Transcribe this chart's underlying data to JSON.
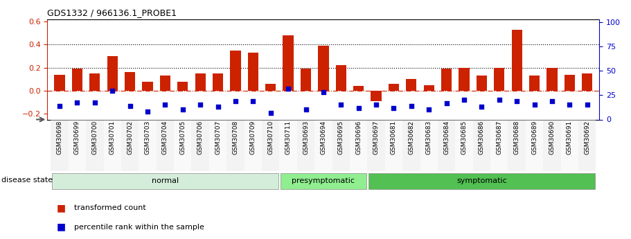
{
  "title": "GDS1332 / 966136.1_PROBE1",
  "samples": [
    "GSM30698",
    "GSM30699",
    "GSM30700",
    "GSM30701",
    "GSM30702",
    "GSM30703",
    "GSM30704",
    "GSM30705",
    "GSM30706",
    "GSM30707",
    "GSM30708",
    "GSM30709",
    "GSM30710",
    "GSM30711",
    "GSM30693",
    "GSM30694",
    "GSM30695",
    "GSM30696",
    "GSM30697",
    "GSM30681",
    "GSM30682",
    "GSM30683",
    "GSM30684",
    "GSM30685",
    "GSM30686",
    "GSM30687",
    "GSM30688",
    "GSM30689",
    "GSM30690",
    "GSM30691",
    "GSM30692"
  ],
  "red_values": [
    0.14,
    0.19,
    0.15,
    0.3,
    0.16,
    0.08,
    0.13,
    0.08,
    0.15,
    0.15,
    0.35,
    0.33,
    0.06,
    0.48,
    0.19,
    0.39,
    0.22,
    0.04,
    -0.09,
    0.06,
    0.1,
    0.05,
    0.19,
    0.2,
    0.13,
    0.2,
    0.53,
    0.13,
    0.2,
    0.14,
    0.15
  ],
  "blue_values": [
    -0.13,
    -0.1,
    -0.1,
    0.0,
    -0.13,
    -0.18,
    -0.12,
    -0.16,
    -0.12,
    -0.14,
    -0.09,
    -0.09,
    -0.19,
    0.02,
    -0.16,
    -0.01,
    -0.12,
    -0.15,
    -0.12,
    -0.15,
    -0.13,
    -0.16,
    -0.11,
    -0.08,
    -0.14,
    -0.08,
    -0.09,
    -0.12,
    -0.09,
    -0.12,
    -0.12
  ],
  "groups": [
    {
      "label": "normal",
      "start": 0,
      "end": 13,
      "color": "#d4edda"
    },
    {
      "label": "presymptomatic",
      "start": 13,
      "end": 18,
      "color": "#90ee90"
    },
    {
      "label": "symptomatic",
      "start": 18,
      "end": 31,
      "color": "#52c052"
    }
  ],
  "bar_color": "#cc2200",
  "square_color": "#0000cc",
  "ylim_left": [
    -0.25,
    0.62
  ],
  "ylim_right": [
    0,
    103
  ],
  "yticks_left": [
    -0.2,
    0.0,
    0.2,
    0.4,
    0.6
  ],
  "yticks_right": [
    0,
    25,
    50,
    75,
    100
  ],
  "hlines": [
    0.2,
    0.4
  ],
  "legend_items": [
    "transformed count",
    "percentile rank within the sample"
  ],
  "disease_state_label": "disease state"
}
